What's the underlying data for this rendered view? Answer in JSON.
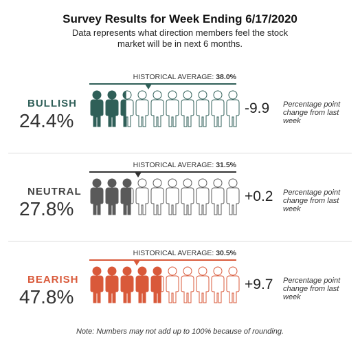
{
  "title": "Survey Results for Week Ending 6/17/2020",
  "subtitle": "Data represents what direction members feel the stock market will be in next 6 months.",
  "historical_prefix": "HISTORICAL AVERAGE:",
  "change_description": "Percentage point change from last week",
  "footnote": "Note: Numbers may not add up to 100% because of rounding.",
  "chart_data": {
    "type": "pictograph",
    "total_icons": 10,
    "rows": [
      {
        "label": "BULLISH",
        "value": 24.4,
        "display": "24.4%",
        "historical": 38.0,
        "historical_display": "38.0%",
        "change": -9.9,
        "change_display": "-9.9",
        "color": "#2f5f58"
      },
      {
        "label": "NEUTRAL",
        "value": 27.8,
        "display": "27.8%",
        "historical": 31.5,
        "historical_display": "31.5%",
        "change": 0.2,
        "change_display": "+0.2",
        "color": "#5a5a5a"
      },
      {
        "label": "BEARISH",
        "value": 47.8,
        "display": "47.8%",
        "historical": 30.5,
        "historical_display": "30.5%",
        "change": 9.7,
        "change_display": "+9.7",
        "color": "#d9593a"
      }
    ]
  }
}
